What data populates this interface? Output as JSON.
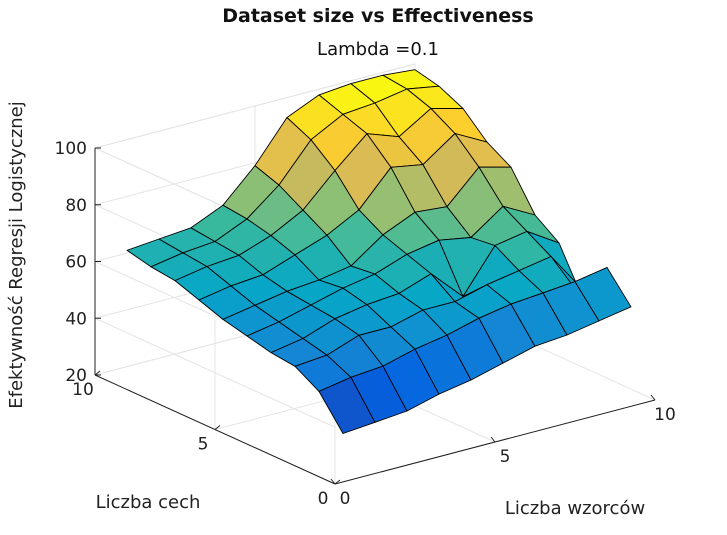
{
  "chart_data": {
    "type": "surface",
    "title": "Dataset size vs Effectiveness",
    "subtitle": "Lambda =0.1",
    "xlabel": "Liczba wzorców",
    "ylabel": "Liczba cech",
    "zlabel": "Efektywność Regresji Logistycznej",
    "xlim": [
      0,
      10
    ],
    "ylim": [
      0,
      10
    ],
    "zlim": [
      20,
      100
    ],
    "xticks": [
      "0",
      "5",
      "10"
    ],
    "yticks": [
      "0",
      "5",
      "10"
    ],
    "zticks": [
      "20",
      "40",
      "60",
      "80",
      "100"
    ],
    "colormap": "parula",
    "grid": true,
    "x": [
      1,
      2,
      3,
      4,
      5,
      6,
      7,
      8,
      9,
      10
    ],
    "y": [
      1,
      2,
      3,
      4,
      5,
      6,
      7,
      8,
      9,
      10
    ],
    "z": [
      [
        31,
        32,
        33,
        36,
        38,
        41,
        44,
        45,
        47,
        49
      ],
      [
        42,
        44,
        45,
        48,
        50,
        53,
        55,
        56,
        57,
        59
      ],
      [
        47,
        48,
        52,
        52,
        55,
        55,
        58,
        60,
        62,
        44
      ],
      [
        48,
        50,
        54,
        56,
        57,
        61,
        50,
        65,
        67,
        60
      ],
      [
        50,
        52,
        55,
        58,
        60,
        64,
        66,
        64,
        72,
        66
      ],
      [
        52,
        54,
        56,
        57,
        59,
        67,
        72,
        71,
        82,
        79
      ],
      [
        55,
        57,
        58,
        62,
        66,
        72,
        84,
        82,
        90,
        84
      ],
      [
        58,
        60,
        61,
        65,
        71,
        82,
        92,
        88,
        95,
        92
      ],
      [
        59,
        61,
        62,
        67,
        76,
        89,
        95,
        96,
        98,
        96
      ],
      [
        61,
        62,
        63,
        68,
        79,
        93,
        98,
        99,
        99,
        98
      ]
    ]
  }
}
